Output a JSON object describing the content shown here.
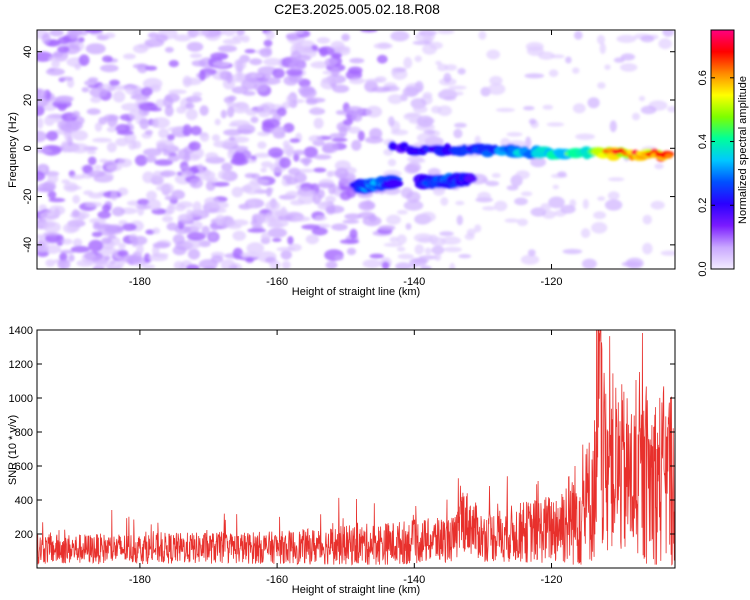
{
  "title": "C2E3.2025.005.02.18.R08",
  "chart_data": [
    {
      "type": "heatmap",
      "xlabel": "Height of straight line (km)",
      "ylabel": "Frequency (Hz)",
      "xlim": [
        -195,
        -102
      ],
      "ylim": [
        -50,
        49
      ],
      "x_ticks": [
        -180,
        -160,
        -140,
        -120
      ],
      "y_ticks": [
        -40,
        -20,
        0,
        20,
        40
      ],
      "x_tick_labels": [
        "-180",
        "-160",
        "-140",
        "-120"
      ],
      "y_tick_labels": [
        "-40",
        "-20",
        "0",
        "20",
        "40"
      ],
      "colorbar": {
        "label": "Normalized spectral amplitude",
        "range": [
          0,
          0.75
        ],
        "ticks": [
          0,
          0.2,
          0.4,
          0.6
        ],
        "tick_labels": [
          "0.0",
          "0.2",
          "0.4",
          "0.6"
        ],
        "colors": [
          "#f4ecff",
          "#c9a8ff",
          "#7a1bff",
          "#2b00ff",
          "#0050ff",
          "#00c8ff",
          "#00ff9a",
          "#7dff00",
          "#ffff00",
          "#ff8a00",
          "#ff0000",
          "#ff0080"
        ]
      },
      "ridges": [
        {
          "x": [
            -148,
            -143
          ],
          "y": [
            -16,
            -14
          ],
          "peak": 0.35
        },
        {
          "x": [
            -139,
            -132
          ],
          "y": [
            -14,
            -13
          ],
          "peak": 0.3
        },
        {
          "x": [
            -143,
            -103
          ],
          "y": [
            0,
            -3
          ],
          "peak": 0.75
        }
      ]
    },
    {
      "type": "line",
      "xlabel": "Height of straight line (km)",
      "ylabel": "SNR (10 * v/v)",
      "xlim": [
        -195,
        -102
      ],
      "ylim": [
        0,
        1400
      ],
      "x_ticks": [
        -180,
        -160,
        -140,
        -120
      ],
      "y_ticks": [
        200,
        400,
        600,
        800,
        1000,
        1200,
        1400
      ],
      "x_tick_labels": [
        "-180",
        "-160",
        "-140",
        "-120"
      ],
      "y_tick_labels": [
        "200",
        "400",
        "600",
        "800",
        "1000",
        "1200",
        "1400"
      ],
      "series_color": "#e8302c",
      "envelope": [
        {
          "x": -195,
          "baseline": 110,
          "spread": 110
        },
        {
          "x": -160,
          "baseline": 120,
          "spread": 120
        },
        {
          "x": -145,
          "baseline": 140,
          "spread": 160
        },
        {
          "x": -134,
          "baseline": 170,
          "spread": 170
        },
        {
          "x": -133,
          "baseline": 300,
          "spread": 250
        },
        {
          "x": -130,
          "baseline": 180,
          "spread": 180
        },
        {
          "x": -120,
          "baseline": 230,
          "spread": 260
        },
        {
          "x": -115,
          "baseline": 350,
          "spread": 450
        },
        {
          "x": -112,
          "baseline": 650,
          "spread": 700
        },
        {
          "x": -108,
          "baseline": 500,
          "spread": 600
        },
        {
          "x": -102,
          "baseline": 550,
          "spread": 700
        }
      ]
    }
  ]
}
